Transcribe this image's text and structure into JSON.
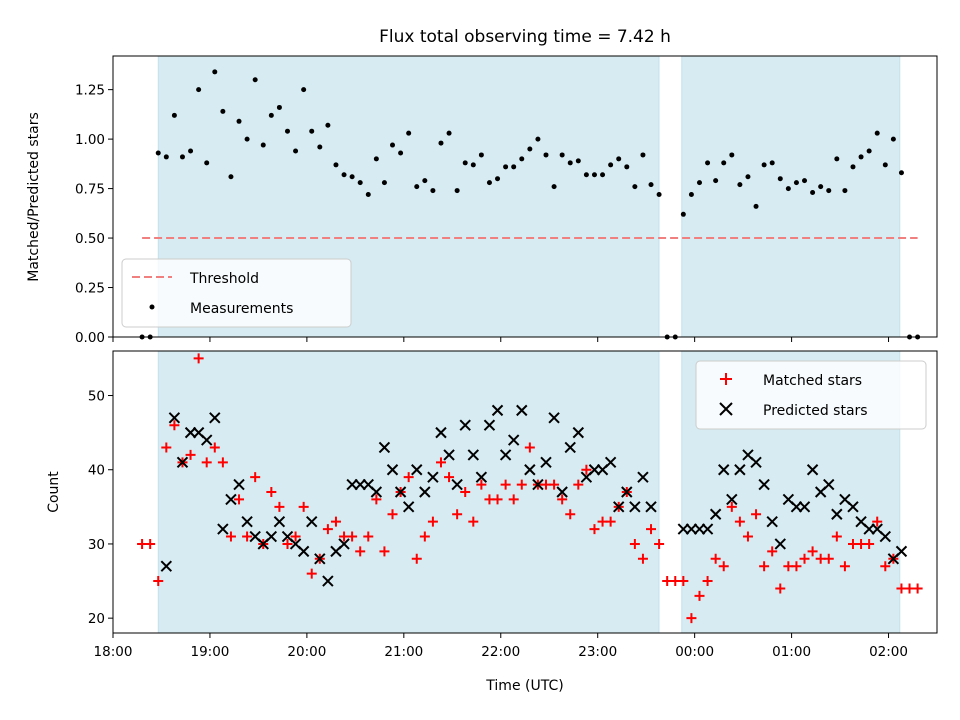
{
  "chart_data": [
    {
      "type": "scatter",
      "title": "Flux total observing time = 7.42 h",
      "xlabel": "",
      "ylabel": "Matched/Predicted stars",
      "ylim": [
        0,
        1.42
      ],
      "xlim": [
        "18:00",
        "02:30"
      ],
      "y_ticks": [
        "0.00",
        "0.25",
        "0.50",
        "0.75",
        "1.00",
        "1.25"
      ],
      "shaded_intervals": [
        [
          "18:28",
          "23:38"
        ],
        [
          "23:52",
          "02:07"
        ]
      ],
      "threshold": {
        "name": "Threshold",
        "value": 0.5,
        "x_range": [
          "18:18",
          "02:18"
        ],
        "color": "#f08080",
        "style": "dashed"
      },
      "legend": {
        "position": "lower-left",
        "entries": [
          "Threshold",
          "Measurements"
        ]
      },
      "series": [
        {
          "name": "Measurements",
          "color": "#000000",
          "x": [
            "18:18",
            "18:23",
            "18:28",
            "18:33",
            "18:38",
            "18:43",
            "18:48",
            "18:53",
            "18:58",
            "19:03",
            "19:08",
            "19:13",
            "19:18",
            "19:23",
            "19:28",
            "19:33",
            "19:38",
            "19:43",
            "19:48",
            "19:53",
            "19:58",
            "20:03",
            "20:08",
            "20:13",
            "20:18",
            "20:23",
            "20:28",
            "20:33",
            "20:38",
            "20:43",
            "20:48",
            "20:53",
            "20:58",
            "21:03",
            "21:08",
            "21:13",
            "21:18",
            "21:23",
            "21:28",
            "21:33",
            "21:38",
            "21:43",
            "21:48",
            "21:53",
            "21:58",
            "22:03",
            "22:08",
            "22:13",
            "22:18",
            "22:23",
            "22:28",
            "22:33",
            "22:38",
            "22:43",
            "22:48",
            "22:53",
            "22:58",
            "23:03",
            "23:08",
            "23:13",
            "23:18",
            "23:23",
            "23:28",
            "23:33",
            "23:38",
            "23:43",
            "23:48",
            "23:53",
            "23:58",
            "00:03",
            "00:08",
            "00:13",
            "00:18",
            "00:23",
            "00:28",
            "00:33",
            "00:38",
            "00:43",
            "00:48",
            "00:53",
            "00:58",
            "01:03",
            "01:08",
            "01:13",
            "01:18",
            "01:23",
            "01:28",
            "01:33",
            "01:38",
            "01:43",
            "01:48",
            "01:53",
            "01:58",
            "02:03",
            "02:08",
            "02:13",
            "02:18"
          ],
          "y": [
            0,
            0,
            0.93,
            0.91,
            1.12,
            0.91,
            0.94,
            1.25,
            0.88,
            1.34,
            1.14,
            0.81,
            1.09,
            1.0,
            1.3,
            0.97,
            1.12,
            1.16,
            1.04,
            0.94,
            1.25,
            1.04,
            0.96,
            1.07,
            0.87,
            0.82,
            0.81,
            0.78,
            0.72,
            0.9,
            0.78,
            0.97,
            0.93,
            1.03,
            0.76,
            0.79,
            0.74,
            0.98,
            1.03,
            0.74,
            0.88,
            0.87,
            0.92,
            0.78,
            0.8,
            0.86,
            0.86,
            0.9,
            0.95,
            1.0,
            0.92,
            0.76,
            0.92,
            0.88,
            0.89,
            0.82,
            0.82,
            0.82,
            0.87,
            0.9,
            0.86,
            0.76,
            0.92,
            0.77,
            0.72,
            0,
            0,
            0.62,
            0.72,
            0.78,
            0.88,
            0.79,
            0.88,
            0.92,
            0.77,
            0.81,
            0.66,
            0.87,
            0.88,
            0.8,
            0.75,
            0.78,
            0.79,
            0.73,
            0.76,
            0.74,
            0.9,
            0.74,
            0.86,
            0.91,
            0.94,
            1.03,
            0.87,
            1.0,
            0.83,
            0,
            0
          ]
        }
      ]
    },
    {
      "type": "scatter",
      "title": "",
      "xlabel": "Time (UTC)",
      "ylabel": "Count",
      "ylim": [
        18,
        56
      ],
      "xlim": [
        "18:00",
        "02:30"
      ],
      "x_ticks": [
        "18:00",
        "19:00",
        "20:00",
        "21:00",
        "22:00",
        "23:00",
        "00:00",
        "01:00",
        "02:00"
      ],
      "y_ticks": [
        "20",
        "30",
        "40",
        "50"
      ],
      "shaded_intervals": [
        [
          "18:28",
          "23:38"
        ],
        [
          "23:52",
          "02:07"
        ]
      ],
      "legend": {
        "position": "top-right",
        "entries": [
          "Matched stars",
          "Predicted stars"
        ]
      },
      "series": [
        {
          "name": "Matched stars",
          "marker": "plus",
          "color": "#ff0000",
          "x": [
            "18:18",
            "18:23",
            "18:28",
            "18:33",
            "18:38",
            "18:43",
            "18:48",
            "18:53",
            "18:58",
            "19:03",
            "19:08",
            "19:13",
            "19:18",
            "19:23",
            "19:28",
            "19:33",
            "19:38",
            "19:43",
            "19:48",
            "19:53",
            "19:58",
            "20:03",
            "20:08",
            "20:13",
            "20:18",
            "20:23",
            "20:28",
            "20:33",
            "20:38",
            "20:43",
            "20:48",
            "20:53",
            "20:58",
            "21:03",
            "21:08",
            "21:13",
            "21:18",
            "21:23",
            "21:28",
            "21:33",
            "21:38",
            "21:43",
            "21:48",
            "21:53",
            "21:58",
            "22:03",
            "22:08",
            "22:13",
            "22:18",
            "22:23",
            "22:28",
            "22:33",
            "22:38",
            "22:43",
            "22:48",
            "22:53",
            "22:58",
            "23:03",
            "23:08",
            "23:13",
            "23:18",
            "23:23",
            "23:28",
            "23:33",
            "23:38",
            "23:43",
            "23:48",
            "23:53",
            "23:58",
            "00:03",
            "00:08",
            "00:13",
            "00:18",
            "00:23",
            "00:28",
            "00:33",
            "00:38",
            "00:43",
            "00:48",
            "00:53",
            "00:58",
            "01:03",
            "01:08",
            "01:13",
            "01:18",
            "01:23",
            "01:28",
            "01:33",
            "01:38",
            "01:43",
            "01:48",
            "01:53",
            "01:58",
            "02:03",
            "02:08",
            "02:13",
            "02:18"
          ],
          "y": [
            30,
            30,
            25,
            43,
            46,
            41,
            42,
            55,
            41,
            43,
            41,
            31,
            36,
            31,
            39,
            30,
            37,
            35,
            30,
            31,
            35,
            26,
            28,
            32,
            33,
            31,
            31,
            29,
            31,
            36,
            29,
            34,
            37,
            39,
            28,
            31,
            33,
            41,
            39,
            34,
            37,
            33,
            38,
            36,
            36,
            38,
            36,
            38,
            43,
            38,
            38,
            38,
            36,
            34,
            38,
            40,
            32,
            33,
            33,
            35,
            37,
            30,
            28,
            32,
            30,
            25,
            25,
            25,
            20,
            23,
            25,
            28,
            27,
            35,
            33,
            31,
            34,
            27,
            29,
            24,
            27,
            27,
            28,
            29,
            28,
            28,
            31,
            27,
            30,
            30,
            30,
            33,
            27,
            28,
            24,
            24,
            24
          ]
        },
        {
          "name": "Predicted stars",
          "marker": "x",
          "color": "#000000",
          "x": [
            "18:33",
            "18:38",
            "18:43",
            "18:48",
            "18:53",
            "18:58",
            "19:03",
            "19:08",
            "19:13",
            "19:18",
            "19:23",
            "19:28",
            "19:33",
            "19:38",
            "19:43",
            "19:48",
            "19:53",
            "19:58",
            "20:03",
            "20:08",
            "20:13",
            "20:18",
            "20:23",
            "20:28",
            "20:33",
            "20:38",
            "20:43",
            "20:48",
            "20:53",
            "20:58",
            "21:03",
            "21:08",
            "21:13",
            "21:18",
            "21:23",
            "21:28",
            "21:33",
            "21:38",
            "21:43",
            "21:48",
            "21:53",
            "21:58",
            "22:03",
            "22:08",
            "22:13",
            "22:18",
            "22:23",
            "22:28",
            "22:33",
            "22:38",
            "22:43",
            "22:48",
            "22:53",
            "22:58",
            "23:03",
            "23:08",
            "23:13",
            "23:18",
            "23:23",
            "23:28",
            "23:33",
            "23:53",
            "23:58",
            "00:03",
            "00:08",
            "00:13",
            "00:18",
            "00:23",
            "00:28",
            "00:33",
            "00:38",
            "00:43",
            "00:48",
            "00:53",
            "00:58",
            "01:03",
            "01:08",
            "01:13",
            "01:18",
            "01:23",
            "01:28",
            "01:33",
            "01:38",
            "01:43",
            "01:48",
            "01:53",
            "01:58",
            "02:03",
            "02:08"
          ],
          "y": [
            27,
            47,
            41,
            45,
            45,
            44,
            47,
            32,
            36,
            38,
            33,
            31,
            30,
            31,
            33,
            31,
            30,
            29,
            33,
            28,
            25,
            29,
            30,
            38,
            38,
            38,
            37,
            43,
            40,
            37,
            35,
            40,
            37,
            39,
            45,
            42,
            38,
            46,
            42,
            39,
            46,
            48,
            42,
            44,
            48,
            40,
            38,
            41,
            47,
            37,
            43,
            45,
            39,
            40,
            40,
            41,
            35,
            37,
            35,
            39,
            35,
            32,
            32,
            32,
            32,
            34,
            40,
            36,
            40,
            42,
            41,
            38,
            33,
            30,
            36,
            35,
            35,
            40,
            37,
            38,
            34,
            36,
            35,
            33,
            32,
            32,
            31,
            28,
            29
          ]
        }
      ]
    }
  ]
}
